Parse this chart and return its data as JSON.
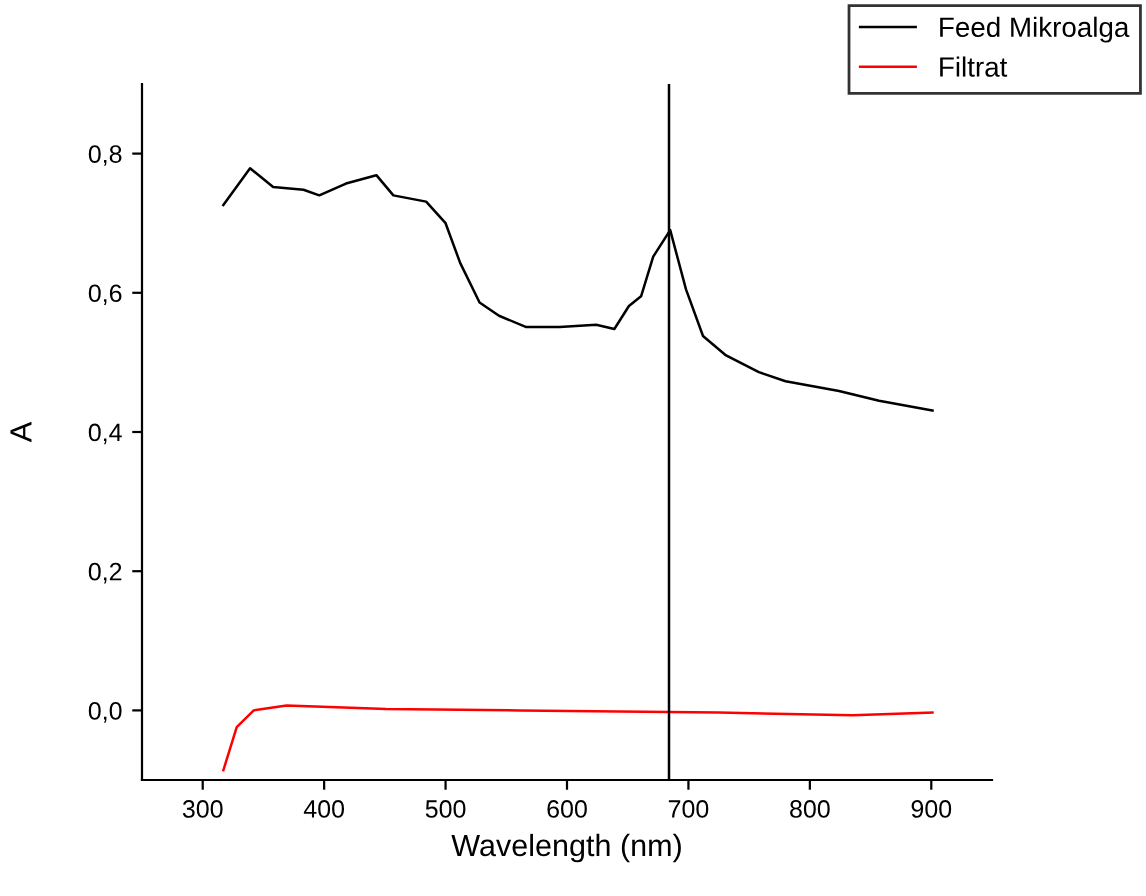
{
  "chart_data": {
    "type": "line",
    "xlabel": "Wavelength (nm)",
    "ylabel": "A",
    "xlim": [
      250,
      950
    ],
    "xticks": [
      300,
      400,
      500,
      600,
      700,
      800,
      900
    ],
    "ylim": [
      -0.1,
      0.9
    ],
    "yticks": [
      {
        "value": 0,
        "label": "0,0"
      },
      {
        "value": 0.2,
        "label": "0,2"
      },
      {
        "value": 0.4,
        "label": "0,4"
      },
      {
        "value": 0.6,
        "label": "0,6"
      },
      {
        "value": 0.8,
        "label": "0,8"
      }
    ],
    "legend": "top right",
    "grid": false,
    "series": [
      {
        "name": "Feed Mikroalga",
        "color": "#000000",
        "x": [
          317,
          339,
          358,
          383,
          396,
          418,
          443,
          457,
          484,
          500,
          512,
          528,
          544,
          566,
          594,
          624,
          639,
          651,
          661,
          671,
          685,
          698,
          712,
          731,
          758,
          780,
          824,
          857,
          901
        ],
        "values": [
          0.726,
          0.779,
          0.752,
          0.748,
          0.74,
          0.757,
          0.769,
          0.74,
          0.731,
          0.7,
          0.643,
          0.586,
          0.567,
          0.551,
          0.551,
          0.554,
          0.548,
          0.581,
          0.595,
          0.652,
          0.69,
          0.605,
          0.538,
          0.51,
          0.486,
          0.473,
          0.459,
          0.445,
          0.431
        ]
      },
      {
        "name": "Filtrat",
        "color": "#ff0000",
        "x": [
          317,
          328,
          342,
          369,
          451,
          561,
          725,
          835,
          901
        ],
        "values": [
          -0.086,
          -0.024,
          0.0,
          0.007,
          0.002,
          0.0,
          -0.003,
          -0.007,
          -0.003
        ]
      }
    ],
    "ref_lines": [
      {
        "axis": "x",
        "value": 684,
        "color": "#000000"
      }
    ]
  }
}
